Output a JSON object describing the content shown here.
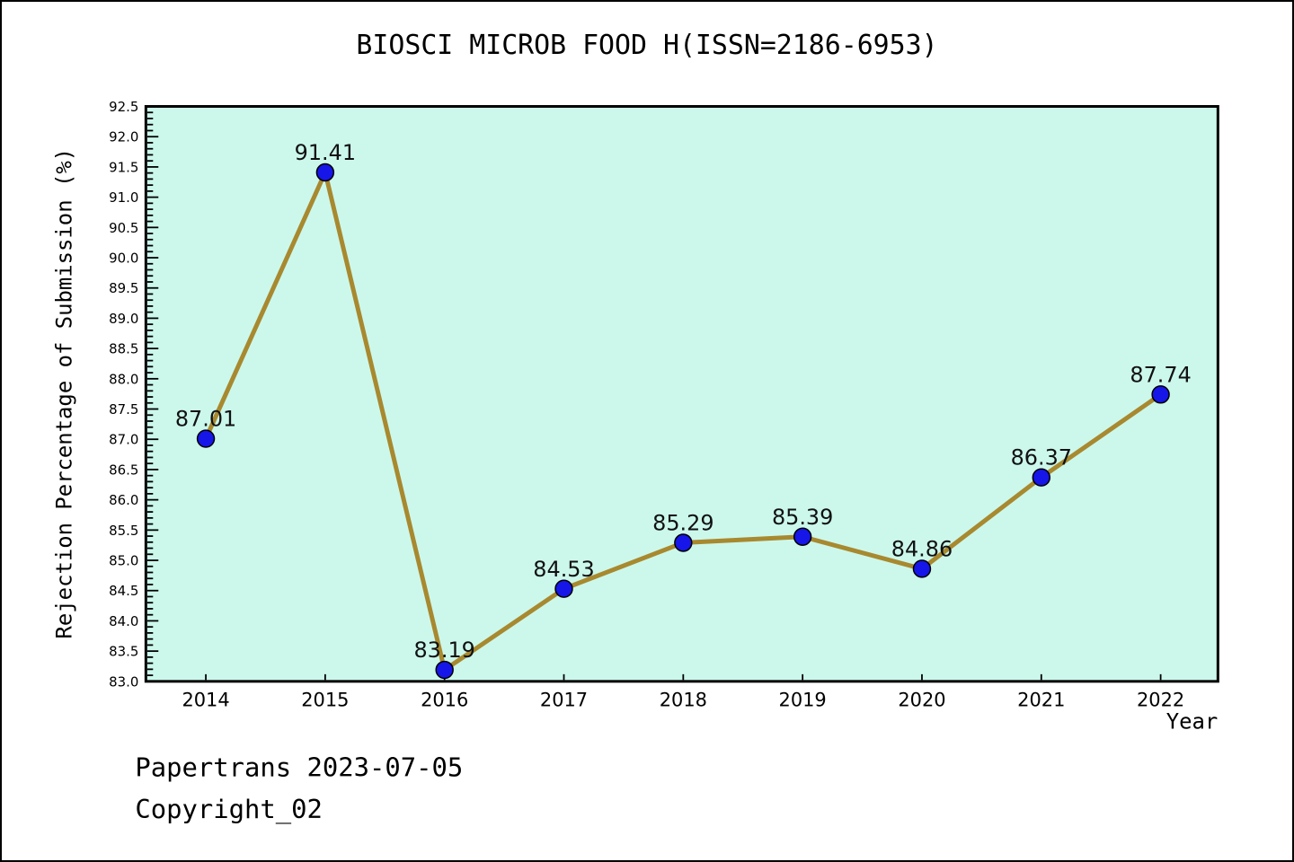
{
  "footer": {
    "line1": "Papertrans 2023-07-05",
    "line2": "Copyright_02"
  },
  "chart_data": {
    "type": "line",
    "title": "BIOSCI MICROB FOOD H(ISSN=2186-6953)",
    "xlabel": "Year",
    "ylabel": "Rejection Percentage of Submission (%)",
    "x": [
      2014,
      2015,
      2016,
      2017,
      2018,
      2019,
      2020,
      2021,
      2022
    ],
    "values": [
      87.01,
      91.41,
      83.19,
      84.53,
      85.29,
      85.39,
      84.86,
      86.37,
      87.74
    ],
    "labels": [
      "87.01",
      "91.41",
      "83.19",
      "84.53",
      "85.29",
      "85.39",
      "84.86",
      "86.37",
      "87.74"
    ],
    "ylim": [
      83.0,
      92.5
    ],
    "ytick_step": 0.5,
    "yminor_step": 0.1,
    "grid": "off",
    "legend": "none",
    "colors": {
      "line": "#a8892f",
      "marker": "#1616e8",
      "marker_edge": "#000000",
      "plot_bg": "#ccf8ec",
      "frame": "#000000",
      "text": "#000000"
    }
  }
}
